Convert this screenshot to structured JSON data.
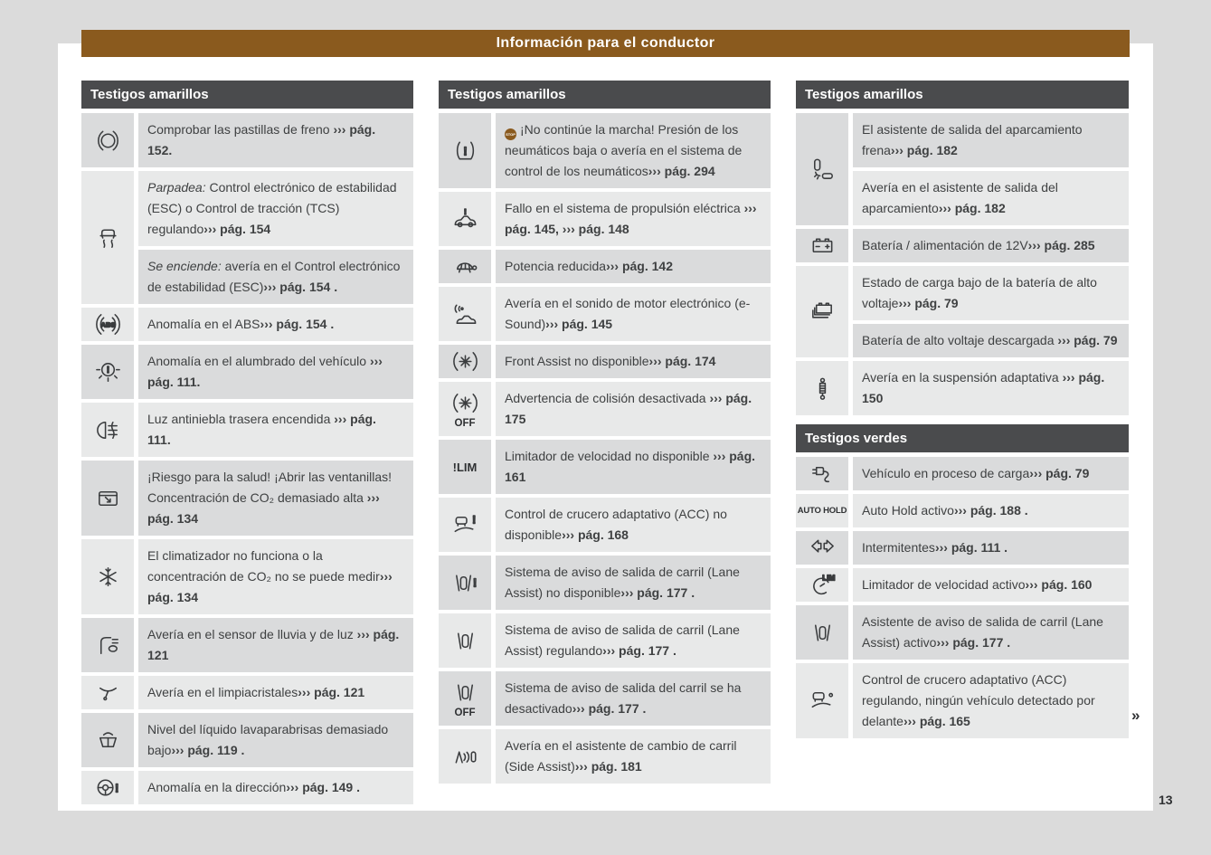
{
  "header": {
    "title": "Información para el conductor"
  },
  "page_number": "13",
  "continuation_marker": "»",
  "colors": {
    "accent_brown": "#8A5A1E",
    "table_header_gray": "#4A4B4D",
    "row_dark": "#DADBDC",
    "row_light": "#E8E9E9",
    "canvas_gray": "#DBDBDB",
    "text": "#3F4142"
  },
  "columns": [
    {
      "tables": [
        {
          "title": "Testigos amarillos",
          "entries": [
            {
              "icon": "brake-pads-icon",
              "rows": [
                {
                  "text": "Comprobar las pastillas de freno ",
                  "ref": "››› pág. 152."
                }
              ]
            },
            {
              "icon": "esc-tcs-icon",
              "rows": [
                {
                  "prefix": "Parpadea:",
                  "text": " Control electrónico de estabilidad (ESC) o Control de tracción (TCS) regulando",
                  "ref": "››› pág. 154"
                },
                {
                  "prefix": "Se enciende:",
                  "text": " avería en el Control electrónico de estabilidad (ESC)",
                  "ref": "››› pág. 154 ."
                }
              ]
            },
            {
              "icon": "abs-icon",
              "rows": [
                {
                  "text": "Anomalía en el ABS",
                  "ref": "››› pág. 154 ."
                }
              ]
            },
            {
              "icon": "lighting-fault-icon",
              "rows": [
                {
                  "text": "Anomalía en el alumbrado del vehículo ",
                  "ref": "››› pág. 111."
                }
              ]
            },
            {
              "icon": "rear-fog-light-icon",
              "rows": [
                {
                  "text": "Luz antiniebla trasera encendida ",
                  "ref": "››› pág. 111."
                }
              ]
            },
            {
              "icon": "window-co2-icon",
              "rows": [
                {
                  "text": "¡Riesgo para la salud! ¡Abrir las ventanillas! Concentración de CO₂ demasiado alta ",
                  "ref": "››› pág. 134"
                }
              ]
            },
            {
              "icon": "climatronic-icon",
              "rows": [
                {
                  "text": "El climatizador no funciona o la concentración de CO₂ no se puede medir",
                  "ref": "››› pág. 134"
                }
              ]
            },
            {
              "icon": "rain-light-sensor-icon",
              "rows": [
                {
                  "text": "Avería en el sensor de lluvia y de luz ",
                  "ref": "››› pág. 121"
                }
              ]
            },
            {
              "icon": "wiper-fault-icon",
              "rows": [
                {
                  "text": "Avería en el limpiacristales",
                  "ref": "››› pág. 121"
                }
              ]
            },
            {
              "icon": "washer-fluid-icon",
              "rows": [
                {
                  "text": "Nivel del líquido lavaparabrisas demasiado bajo",
                  "ref": "››› pág. 119 ."
                }
              ]
            },
            {
              "icon": "steering-fault-icon",
              "rows": [
                {
                  "text": "Anomalía en la dirección",
                  "ref": "››› pág. 149 ."
                }
              ]
            }
          ]
        }
      ]
    },
    {
      "tables": [
        {
          "title": "Testigos amarillos",
          "entries": [
            {
              "icon": "tyre-pressure-icon",
              "rows": [
                {
                  "badge": "STOP",
                  "text": "¡No continúe la marcha! Presión de los neumáticos baja o avería en el sistema de control de los neumáticos",
                  "ref": "››› pág. 294"
                }
              ]
            },
            {
              "icon": "ev-drive-fault-icon",
              "rows": [
                {
                  "text": "Fallo en el sistema de propulsión eléctrica ",
                  "ref": "››› pág. 145, ››› pág. 148"
                }
              ]
            },
            {
              "icon": "reduced-power-turtle-icon",
              "rows": [
                {
                  "text": "Potencia reducida",
                  "ref": "››› pág. 142"
                }
              ]
            },
            {
              "icon": "esound-fault-icon",
              "rows": [
                {
                  "text": "Avería en el sonido de motor electrónico (e-Sound)",
                  "ref": "››› pág. 145"
                }
              ]
            },
            {
              "icon": "front-assist-icon",
              "rows": [
                {
                  "text": "Front Assist no disponible",
                  "ref": "››› pág. 174"
                }
              ]
            },
            {
              "icon": "front-assist-icon",
              "icon_sub": "OFF",
              "rows": [
                {
                  "text": "Advertencia de colisión desactivada ",
                  "ref": "››› pág. 175"
                }
              ]
            },
            {
              "icon": "speed-limiter-na-icon",
              "icon_label": "!LIM",
              "rows": [
                {
                  "text": "Limitador de velocidad no disponible ",
                  "ref": "››› pág. 161"
                }
              ]
            },
            {
              "icon": "acc-fault-icon",
              "rows": [
                {
                  "text": "Control de crucero adaptativo (ACC) no disponible",
                  "ref": "››› pág. 168"
                }
              ]
            },
            {
              "icon": "lane-assist-fault-icon",
              "rows": [
                {
                  "text": "Sistema de aviso de salida de carril (Lane Assist) no disponible",
                  "ref": "››› pág. 177 ."
                }
              ]
            },
            {
              "icon": "lane-assist-icon",
              "rows": [
                {
                  "text": "Sistema de aviso de salida de carril (Lane Assist) regulando",
                  "ref": "››› pág. 177 ."
                }
              ]
            },
            {
              "icon": "lane-assist-icon",
              "icon_sub": "OFF",
              "rows": [
                {
                  "text": "Sistema de aviso de salida del carril se ha desactivado",
                  "ref": "››› pág. 177 ."
                }
              ]
            },
            {
              "icon": "side-assist-icon",
              "rows": [
                {
                  "text": "Avería en el asistente de cambio de carril (Side Assist)",
                  "ref": "››› pág. 181"
                }
              ]
            }
          ]
        }
      ]
    },
    {
      "tables": [
        {
          "title": "Testigos amarillos",
          "entries": [
            {
              "icon": "park-exit-assist-icon",
              "rows": [
                {
                  "text": "El asistente de salida del aparcamiento frena",
                  "ref": "››› pág. 182"
                },
                {
                  "text": "Avería en el asistente de salida del aparcamiento",
                  "ref": "››› pág. 182"
                }
              ]
            },
            {
              "icon": "battery-12v-icon",
              "rows": [
                {
                  "text": "Batería / alimentación de 12V",
                  "ref": "››› pág. 285"
                }
              ]
            },
            {
              "icon": "hv-battery-icon",
              "rows": [
                {
                  "text": "Estado de carga bajo de la batería de alto voltaje",
                  "ref": "››› pág. 79"
                },
                {
                  "text": "Batería de alto voltaje descargada ",
                  "ref": "››› pág. 79"
                }
              ]
            },
            {
              "icon": "adaptive-suspension-icon",
              "rows": [
                {
                  "text": "Avería en la suspensión adaptativa ",
                  "ref": "››› pág. 150"
                }
              ]
            }
          ]
        },
        {
          "title": "Testigos verdes",
          "entries": [
            {
              "icon": "charging-plug-icon",
              "rows": [
                {
                  "text": "Vehículo en proceso de carga",
                  "ref": "››› pág. 79"
                }
              ]
            },
            {
              "icon": "auto-hold-icon",
              "icon_label": "AUTO HOLD",
              "rows": [
                {
                  "text": "Auto Hold activo",
                  "ref": "››› pág. 188 ."
                }
              ]
            },
            {
              "icon": "turn-signals-icon",
              "rows": [
                {
                  "text": "Intermitentes",
                  "ref": "››› pág. 111 ."
                }
              ]
            },
            {
              "icon": "speed-limiter-active-icon",
              "rows": [
                {
                  "text": "Limitador de velocidad activo",
                  "ref": "››› pág. 160"
                }
              ]
            },
            {
              "icon": "lane-assist-icon",
              "rows": [
                {
                  "text": "Asistente de aviso de salida de carril (Lane Assist) activo",
                  "ref": "››› pág. 177 ."
                }
              ]
            },
            {
              "icon": "acc-active-icon",
              "rows": [
                {
                  "text": "Control de crucero adaptativo (ACC) regulando, ningún vehículo detectado por delante",
                  "ref": "››› pág. 165"
                }
              ]
            }
          ]
        }
      ]
    }
  ]
}
